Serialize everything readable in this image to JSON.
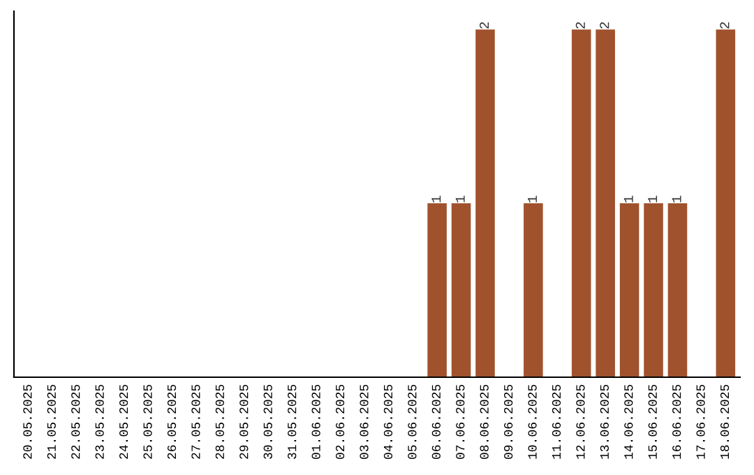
{
  "chart_data": {
    "type": "bar",
    "categories": [
      "20.05.2025",
      "21.05.2025",
      "22.05.2025",
      "23.05.2025",
      "24.05.2025",
      "25.05.2025",
      "26.05.2025",
      "27.05.2025",
      "28.05.2025",
      "29.05.2025",
      "30.05.2025",
      "31.05.2025",
      "01.06.2025",
      "02.06.2025",
      "03.06.2025",
      "04.06.2025",
      "05.06.2025",
      "06.06.2025",
      "07.06.2025",
      "08.06.2025",
      "09.06.2025",
      "10.06.2025",
      "11.06.2025",
      "12.06.2025",
      "13.06.2025",
      "14.06.2025",
      "15.06.2025",
      "16.06.2025",
      "17.06.2025",
      "18.06.2025"
    ],
    "values": [
      null,
      null,
      null,
      null,
      null,
      null,
      null,
      null,
      null,
      null,
      null,
      null,
      null,
      null,
      null,
      null,
      null,
      1,
      1,
      2,
      null,
      1,
      null,
      2,
      2,
      1,
      1,
      1,
      null,
      2
    ],
    "data_labels": true,
    "color": "#a0522d",
    "tick_labels": "x",
    "grid": false,
    "legend": false
  }
}
